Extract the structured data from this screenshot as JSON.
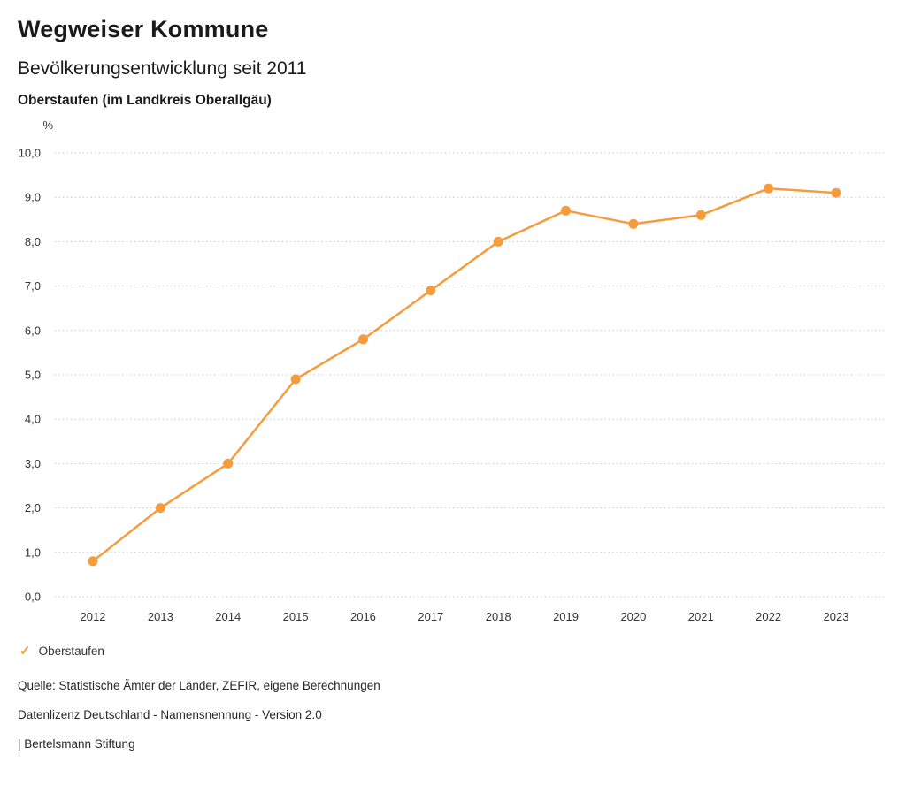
{
  "header": {
    "title": "Wegweiser Kommune",
    "subtitle": "Bevölkerungsentwicklung seit 2011",
    "region": "Oberstaufen (im Landkreis Oberallgäu)"
  },
  "chart_data": {
    "type": "line",
    "title": "Bevölkerungsentwicklung seit 2011 — Oberstaufen (im Landkreis Oberallgäu)",
    "x": [
      "2012",
      "2013",
      "2014",
      "2015",
      "2016",
      "2017",
      "2018",
      "2019",
      "2020",
      "2021",
      "2022",
      "2023"
    ],
    "series": [
      {
        "name": "Oberstaufen",
        "values": [
          0.8,
          2.0,
          3.0,
          4.9,
          5.8,
          6.9,
          8.0,
          8.7,
          8.4,
          8.6,
          9.2,
          9.1
        ]
      }
    ],
    "xlabel": "",
    "ylabel": "%",
    "ylim": [
      0,
      10
    ],
    "ytick_step": 1,
    "ytick_decimal_separator": ",",
    "grid": "horizontal-dotted",
    "legend_position": "bottom-left",
    "line_color": "#F59C3C"
  },
  "legend": {
    "items": [
      {
        "label": "Oberstaufen",
        "color": "#F59C3C",
        "marker": "check"
      }
    ]
  },
  "legend_marker_glyph": "✓",
  "footer": {
    "lines": [
      "Quelle: Statistische Ämter der Länder, ZEFIR, eigene Berechnungen",
      "Datenlizenz Deutschland - Namensnennung - Version 2.0",
      "| Bertelsmann Stiftung"
    ]
  }
}
